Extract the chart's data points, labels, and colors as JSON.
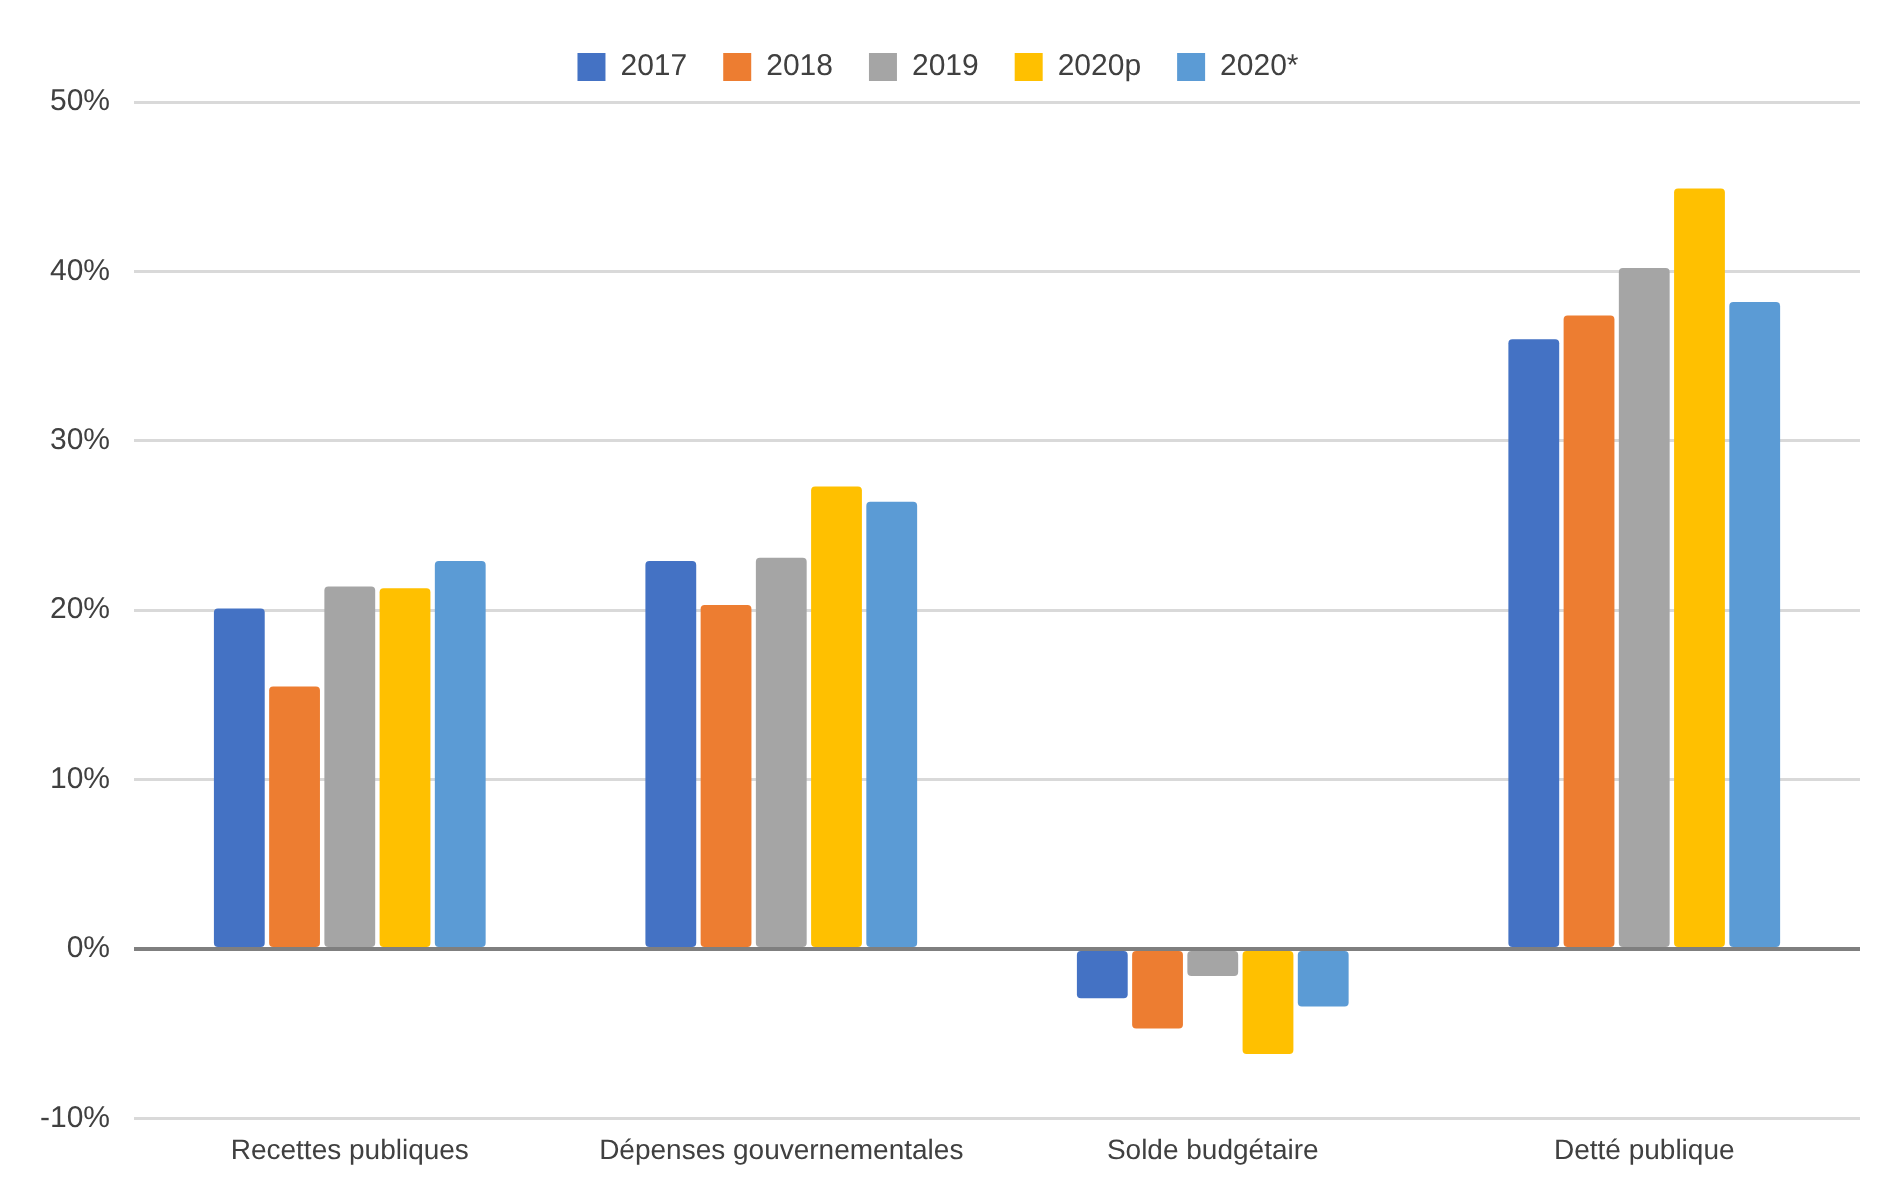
{
  "chart_data": {
    "type": "bar",
    "categories": [
      "Recettes publiques",
      "Dépenses gouvernementales",
      "Solde budgétaire",
      "Detté publique"
    ],
    "series": [
      {
        "name": "2017",
        "color": "#4472c4",
        "values": [
          20.1,
          22.9,
          -2.9,
          36.0
        ]
      },
      {
        "name": "2018",
        "color": "#ed7d31",
        "values": [
          15.5,
          20.3,
          -4.7,
          37.4
        ]
      },
      {
        "name": "2019",
        "color": "#a5a5a5",
        "values": [
          21.4,
          23.1,
          -1.6,
          40.2
        ]
      },
      {
        "name": "2020p",
        "color": "#ffc000",
        "values": [
          21.3,
          27.3,
          -6.2,
          44.9
        ]
      },
      {
        "name": "2020*",
        "color": "#5b9bd5",
        "values": [
          22.9,
          26.4,
          -3.4,
          38.2
        ]
      }
    ],
    "ylim": [
      -10,
      50
    ],
    "yticks": [
      {
        "value": -10,
        "label": "-10%"
      },
      {
        "value": 0,
        "label": "0%"
      },
      {
        "value": 10,
        "label": "10%"
      },
      {
        "value": 20,
        "label": "20%"
      },
      {
        "value": 30,
        "label": "30%"
      },
      {
        "value": 40,
        "label": "40%"
      },
      {
        "value": 50,
        "label": "50%"
      }
    ],
    "grid": "y",
    "legend": "top"
  }
}
